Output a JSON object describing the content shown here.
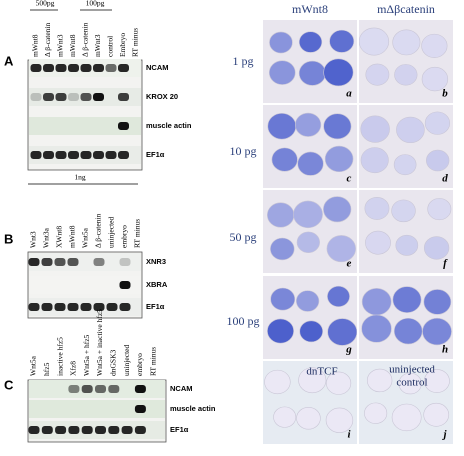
{
  "panel_a": {
    "letter": "A",
    "groups": [
      "500pg",
      "100pg"
    ],
    "lanes": [
      "mWnt8",
      "Δ β-catenin",
      "mWnt3",
      "mWnt8",
      "Δ β-catenin",
      "mWnt3",
      "control",
      "Embryo",
      "RT minus"
    ],
    "rows": [
      "NCAM",
      "KROX 20",
      "muscle actin",
      "EF1α"
    ]
  },
  "panel_b": {
    "letter": "B",
    "group": "1ng",
    "lanes": [
      "Wnt3",
      "Wnt3a",
      "XWnt8",
      "mWnt8",
      "Wnt5a",
      "Δ β-catenin",
      "uninjected",
      "embryo",
      "RT minus"
    ],
    "rows": [
      "XNR3",
      "XBRA",
      "EF1α"
    ]
  },
  "panel_c": {
    "letter": "C",
    "lanes": [
      "Wnt5a",
      "hfz5",
      "inactive hfz5",
      "Xfz8",
      "Wnt5a + hfz5",
      "Wnt5a + inactive hfz5",
      "dnGSK3",
      "uninjected",
      "embryo",
      "RT minus"
    ],
    "rows": [
      "NCAM",
      "muscle actin",
      "EF1α"
    ]
  },
  "embryos": {
    "columns": [
      "mWnt8",
      "mΔβcatenin"
    ],
    "doses": [
      "1 pg",
      "10 pg",
      "50 pg",
      "100 pg"
    ],
    "panels": [
      "a",
      "b",
      "c",
      "d",
      "e",
      "f",
      "g",
      "h",
      "i",
      "j"
    ],
    "controls": {
      "left": "dnTCF",
      "right": [
        "uninjected",
        "control"
      ]
    }
  }
}
